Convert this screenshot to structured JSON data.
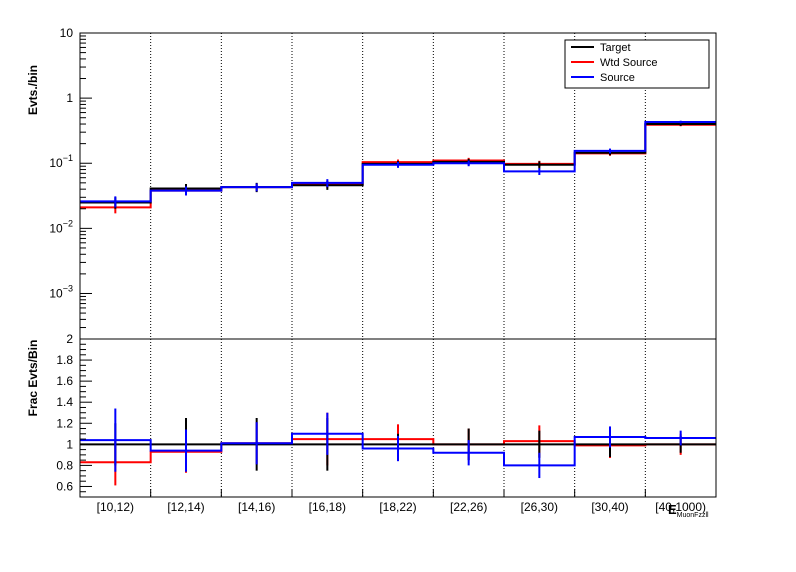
{
  "chart_data": [
    {
      "type": "step",
      "panel": "top",
      "ylabel": "Evts./bin",
      "yscale": "log",
      "ylim": [
        0.0002,
        10
      ],
      "y_ticks": [
        {
          "value": 10,
          "label": "10"
        },
        {
          "value": 1,
          "label": "1"
        },
        {
          "value": 0.1,
          "label": "10",
          "exp": "−1"
        },
        {
          "value": 0.01,
          "label": "10",
          "exp": "−2"
        },
        {
          "value": 0.001,
          "label": "10",
          "exp": "−3"
        }
      ],
      "categories": [
        "[10,12)",
        "[12,14)",
        "[14,16)",
        "[16,18)",
        "[18,22)",
        "[22,26)",
        "[26,30)",
        "[30,40)",
        "[40,1000)"
      ],
      "legend": {
        "placement": "top-right",
        "entries": [
          {
            "name": "Target",
            "color": "#000000"
          },
          {
            "name": "Wtd Source",
            "color": "#ff0000"
          },
          {
            "name": "Source",
            "color": "#0000ff"
          }
        ]
      },
      "series": [
        {
          "name": "Target",
          "color": "#000000",
          "values": [
            0.025,
            0.041,
            0.043,
            0.046,
            0.098,
            0.105,
            0.095,
            0.145,
            0.4
          ],
          "errors": [
            0.005,
            0.007,
            0.007,
            0.007,
            0.01,
            0.012,
            0.012,
            0.012,
            0.025
          ]
        },
        {
          "name": "Wtd Source",
          "color": "#ff0000",
          "values": [
            0.021,
            0.038,
            0.043,
            0.048,
            0.104,
            0.11,
            0.098,
            0.142,
            0.39
          ],
          "errors": [
            0.004,
            0.006,
            0.006,
            0.006,
            0.01,
            0.011,
            0.011,
            0.012,
            0.02
          ]
        },
        {
          "name": "Source",
          "color": "#0000ff",
          "values": [
            0.026,
            0.038,
            0.043,
            0.05,
            0.095,
            0.1,
            0.075,
            0.155,
            0.43
          ],
          "errors": [
            0.005,
            0.006,
            0.006,
            0.007,
            0.01,
            0.01,
            0.009,
            0.013,
            0.02
          ]
        }
      ]
    },
    {
      "type": "step",
      "panel": "bottom",
      "ylabel": "Frac Evts/Bin",
      "ylim": [
        0.5,
        2
      ],
      "y_ticks": [
        {
          "value": 0.6,
          "label": "0.6"
        },
        {
          "value": 0.8,
          "label": "0.8"
        },
        {
          "value": 1.0,
          "label": "1"
        },
        {
          "value": 1.2,
          "label": "1.2"
        },
        {
          "value": 1.4,
          "label": "1.4"
        },
        {
          "value": 1.6,
          "label": "1.6"
        },
        {
          "value": 1.8,
          "label": "1.8"
        },
        {
          "value": 2.0,
          "label": "2"
        }
      ],
      "xlabel": "E",
      "xlabel_sub": "MuonFzzll",
      "categories": [
        "[10,12)",
        "[12,14)",
        "[14,16)",
        "[16,18)",
        "[18,22)",
        "[22,26)",
        "[26,30)",
        "[30,40)",
        "[40,1000)"
      ],
      "series": [
        {
          "name": "Target",
          "color": "#000000",
          "values": [
            1,
            1,
            1,
            1,
            1,
            1,
            1,
            1,
            1
          ],
          "errors": [
            0.2,
            0.25,
            0.25,
            0.25,
            0.1,
            0.15,
            0.13,
            0.12,
            0.08
          ]
        },
        {
          "name": "Wtd Source",
          "color": "#ff0000",
          "values": [
            0.83,
            0.93,
            1.01,
            1.05,
            1.05,
            1.0,
            1.03,
            0.99,
            1.0
          ],
          "errors": [
            0.22,
            0.2,
            0.2,
            0.25,
            0.14,
            0.15,
            0.15,
            0.12,
            0.1
          ]
        },
        {
          "name": "Source",
          "color": "#0000ff",
          "values": [
            1.04,
            0.94,
            1.01,
            1.1,
            0.96,
            0.92,
            0.8,
            1.07,
            1.06
          ],
          "errors": [
            0.3,
            0.2,
            0.2,
            0.2,
            0.12,
            0.12,
            0.12,
            0.1,
            0.07
          ]
        }
      ]
    }
  ]
}
